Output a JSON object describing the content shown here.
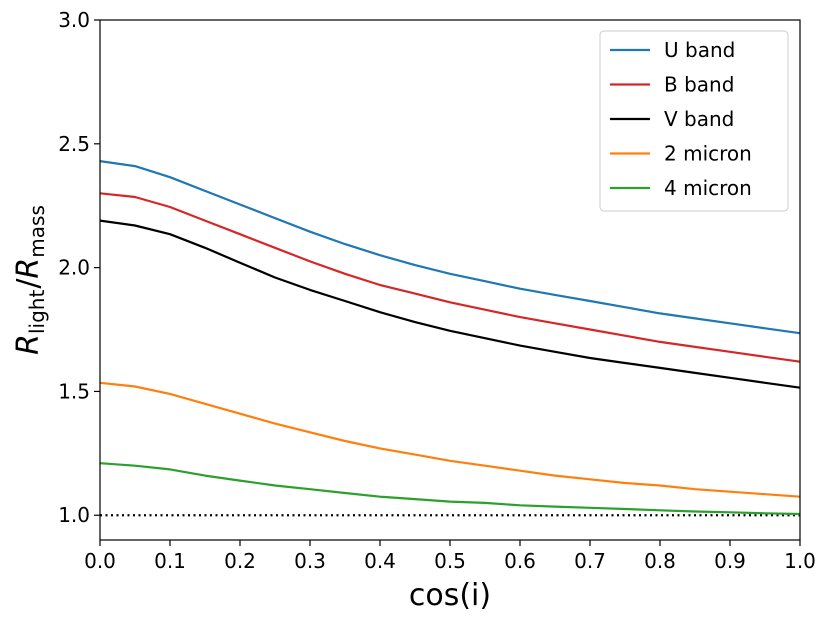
{
  "chart_data": {
    "type": "line",
    "xlabel": "cos(i)",
    "ylabel_main": "R",
    "ylabel_sub_num": "light",
    "ylabel_sub_den": "mass",
    "xlim": [
      0.0,
      1.0
    ],
    "ylim": [
      0.9,
      3.0
    ],
    "xticks": [
      0.0,
      0.1,
      0.2,
      0.3,
      0.4,
      0.5,
      0.6,
      0.7,
      0.8,
      0.9,
      1.0
    ],
    "xtick_labels": [
      "0.0",
      "0.1",
      "0.2",
      "0.3",
      "0.4",
      "0.5",
      "0.6",
      "0.7",
      "0.8",
      "0.9",
      "1.0"
    ],
    "yticks": [
      1.0,
      1.5,
      2.0,
      2.5,
      3.0
    ],
    "ytick_labels": [
      "1.0",
      "1.5",
      "2.0",
      "2.5",
      "3.0"
    ],
    "grid": false,
    "legend_position": "top-right",
    "x": [
      0.0,
      0.05,
      0.1,
      0.15,
      0.2,
      0.25,
      0.3,
      0.35,
      0.4,
      0.45,
      0.5,
      0.55,
      0.6,
      0.65,
      0.7,
      0.75,
      0.8,
      0.85,
      0.9,
      0.95,
      1.0
    ],
    "series": [
      {
        "name": "U band",
        "color": "#1f77b4",
        "values": [
          2.43,
          2.41,
          2.365,
          2.31,
          2.255,
          2.2,
          2.145,
          2.095,
          2.05,
          2.01,
          1.975,
          1.945,
          1.915,
          1.89,
          1.865,
          1.84,
          1.815,
          1.795,
          1.775,
          1.755,
          1.735
        ]
      },
      {
        "name": "B band",
        "color": "#d62728",
        "values": [
          2.3,
          2.285,
          2.245,
          2.19,
          2.135,
          2.08,
          2.025,
          1.975,
          1.93,
          1.895,
          1.86,
          1.83,
          1.8,
          1.775,
          1.75,
          1.725,
          1.7,
          1.68,
          1.66,
          1.64,
          1.62
        ]
      },
      {
        "name": "V band",
        "color": "#000000",
        "values": [
          2.19,
          2.17,
          2.135,
          2.08,
          2.02,
          1.96,
          1.91,
          1.865,
          1.82,
          1.78,
          1.745,
          1.715,
          1.685,
          1.66,
          1.635,
          1.615,
          1.595,
          1.575,
          1.555,
          1.535,
          1.515
        ]
      },
      {
        "name": "2 micron",
        "color": "#ff7f0e",
        "values": [
          1.535,
          1.52,
          1.49,
          1.45,
          1.41,
          1.37,
          1.335,
          1.3,
          1.27,
          1.245,
          1.22,
          1.2,
          1.18,
          1.16,
          1.145,
          1.13,
          1.12,
          1.105,
          1.095,
          1.085,
          1.075
        ]
      },
      {
        "name": "4 micron",
        "color": "#2ca02c",
        "values": [
          1.21,
          1.2,
          1.185,
          1.16,
          1.14,
          1.12,
          1.105,
          1.09,
          1.075,
          1.065,
          1.055,
          1.05,
          1.04,
          1.035,
          1.03,
          1.025,
          1.02,
          1.015,
          1.012,
          1.008,
          1.005
        ]
      }
    ],
    "reference_line": {
      "y": 1.0,
      "style": "dotted",
      "color": "#000000"
    }
  }
}
